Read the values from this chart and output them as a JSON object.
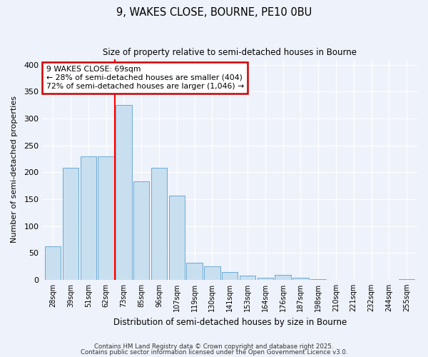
{
  "title": "9, WAKES CLOSE, BOURNE, PE10 0BU",
  "subtitle": "Size of property relative to semi-detached houses in Bourne",
  "xlabel": "Distribution of semi-detached houses by size in Bourne",
  "ylabel": "Number of semi-detached properties",
  "bar_labels": [
    "28sqm",
    "39sqm",
    "51sqm",
    "62sqm",
    "73sqm",
    "85sqm",
    "96sqm",
    "107sqm",
    "119sqm",
    "130sqm",
    "141sqm",
    "153sqm",
    "164sqm",
    "176sqm",
    "187sqm",
    "198sqm",
    "210sqm",
    "221sqm",
    "232sqm",
    "244sqm",
    "255sqm"
  ],
  "bar_values": [
    62,
    208,
    230,
    230,
    325,
    183,
    208,
    157,
    32,
    25,
    15,
    8,
    4,
    9,
    4,
    1,
    0,
    0,
    0,
    0,
    1
  ],
  "bar_color": "#c8dff0",
  "bar_edge_color": "#6aaad4",
  "annotation_title": "9 WAKES CLOSE: 69sqm",
  "annotation_line1": "← 28% of semi-detached houses are smaller (404)",
  "annotation_line2": "72% of semi-detached houses are larger (1,046) →",
  "annotation_box_facecolor": "#ffffff",
  "annotation_box_edgecolor": "#cc0000",
  "ylim": [
    0,
    410
  ],
  "yticks": [
    0,
    50,
    100,
    150,
    200,
    250,
    300,
    350,
    400
  ],
  "bg_color": "#eef2fa",
  "footer1": "Contains HM Land Registry data © Crown copyright and database right 2025.",
  "footer2": "Contains public sector information licensed under the Open Government Licence v3.0."
}
